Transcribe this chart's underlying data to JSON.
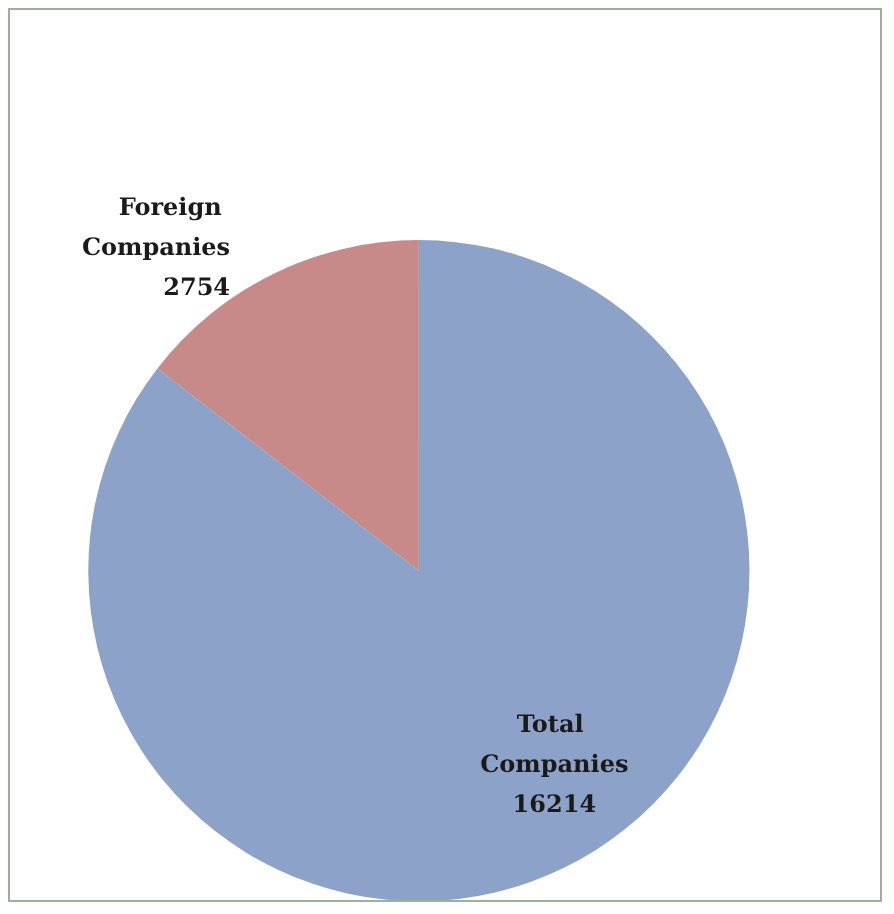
{
  "chart_data": {
    "type": "pie",
    "categories": [
      "Foreign Companies",
      "Total Companies"
    ],
    "values": [
      2754,
      16214
    ],
    "colors": [
      "#c78a89",
      "#8da2c9"
    ],
    "data_labels": true
  }
}
